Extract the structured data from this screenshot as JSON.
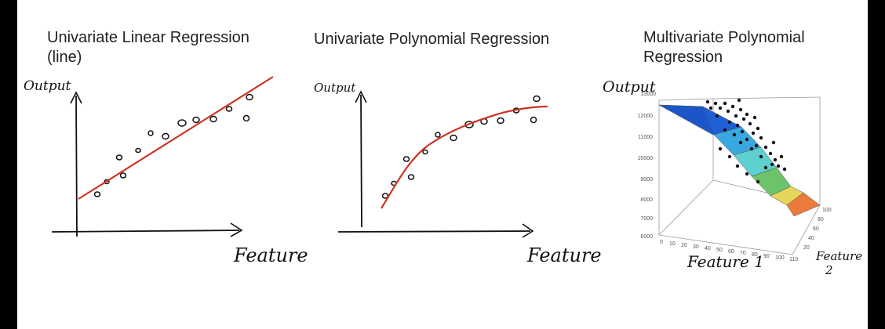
{
  "panels": [
    {
      "title_line1": "Univariate Linear Regression",
      "title_line2": "(line)",
      "ylabel": "Output",
      "xlabel": "Feature"
    },
    {
      "title_line1": "Univariate Polynomial Regression",
      "ylabel": "Output",
      "xlabel": "Feature"
    },
    {
      "title_line1": "Multivariate Polynomial",
      "title_line2": "Regression",
      "ylabel": "Output",
      "xlabel": "Feature 1",
      "zlabel_line1": "Feature",
      "zlabel_line2": "2",
      "y_ticks": [
        "13000",
        "12000",
        "11000",
        "10000",
        "9000",
        "8000",
        "7000",
        "6000"
      ],
      "x_ticks": [
        "0",
        "10",
        "20",
        "30",
        "40",
        "50",
        "60",
        "70",
        "80",
        "90",
        "100",
        "110"
      ],
      "z_ticks": [
        "20",
        "40",
        "60",
        "80",
        "100"
      ]
    }
  ],
  "colors": {
    "fit_line": "#cc3322",
    "ink": "#111111"
  }
}
